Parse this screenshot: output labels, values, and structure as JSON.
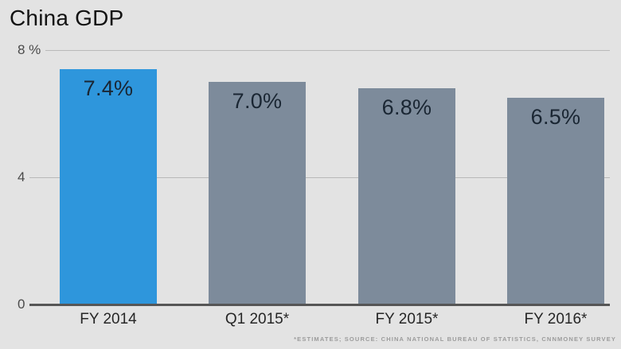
{
  "title": "China GDP",
  "source_note": "*ESTIMATES; SOURCE: CHINA NATIONAL BUREAU OF STATISTICS, CNNMONEY SURVEY",
  "colors": {
    "background": "#e3e3e3",
    "highlight_bar": "#2e96dc",
    "default_bar": "#7d8b9b",
    "title_text": "#121212",
    "axis_text": "#4a4a4a",
    "gridline": "#b9b9b9",
    "baseline": "#565656",
    "value_label_text": "#1a2633",
    "category_label_text": "#262626",
    "source_text": "#9b9b9b"
  },
  "chart_data": {
    "type": "bar",
    "title": "China GDP",
    "categories": [
      "FY 2014",
      "Q1 2015*",
      "FY 2015*",
      "FY 2016*"
    ],
    "values": [
      7.4,
      7.0,
      6.8,
      6.5
    ],
    "value_labels": [
      "7.4%",
      "7.0%",
      "6.8%",
      "6.5%"
    ],
    "bar_colors": [
      "#2e96dc",
      "#7d8b9b",
      "#7d8b9b",
      "#7d8b9b"
    ],
    "highlight_index": 0,
    "xlabel": "",
    "ylabel": "",
    "ylim": [
      0,
      8
    ],
    "yticks": [
      {
        "value": 8,
        "label": "8 %"
      },
      {
        "value": 4,
        "label": "4"
      },
      {
        "value": 0,
        "label": "0"
      }
    ],
    "grid": true,
    "legend": "none",
    "annotation": "*ESTIMATES; SOURCE: CHINA NATIONAL BUREAU OF STATISTICS, CNNMONEY SURVEY"
  }
}
